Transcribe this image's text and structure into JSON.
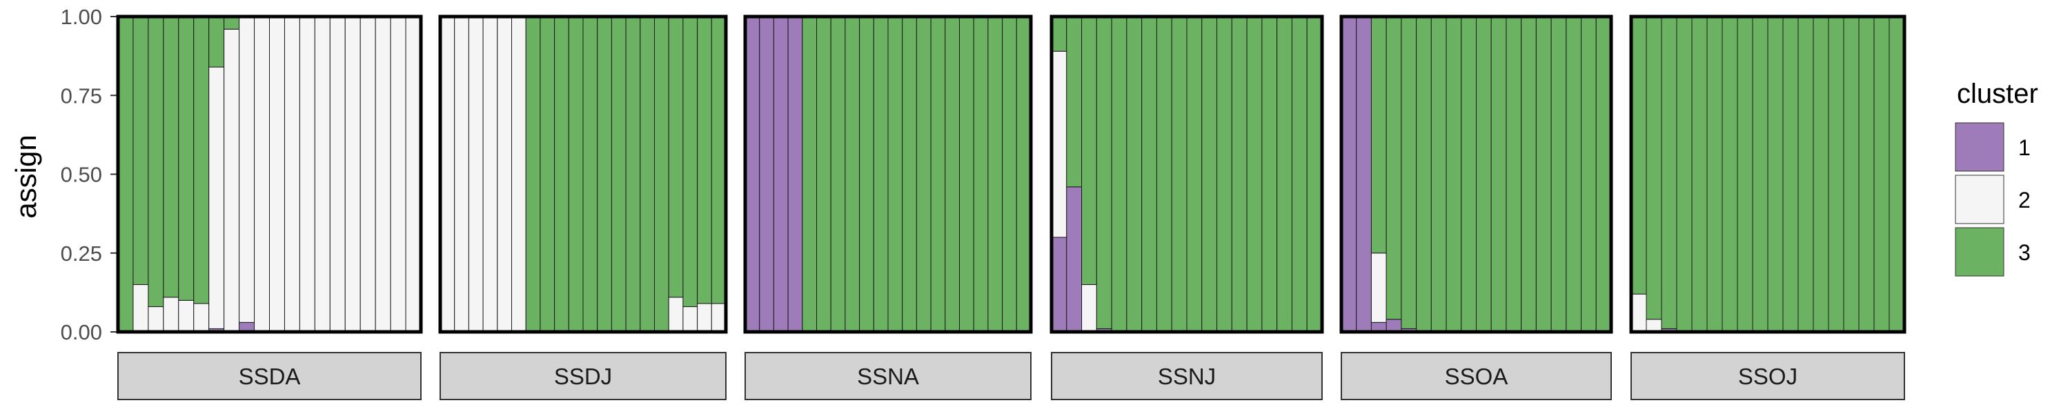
{
  "chart_data": {
    "type": "bar",
    "stacked": true,
    "ylabel": "assign",
    "ylim": [
      0,
      1
    ],
    "yticks": [
      "0.00",
      "0.25",
      "0.50",
      "0.75",
      "1.00"
    ],
    "legend": {
      "title": "cluster",
      "position": "right",
      "entries": [
        {
          "label": "1",
          "color": "#9E7BB9"
        },
        {
          "label": "2",
          "color": "#F5F5F5"
        },
        {
          "label": "3",
          "color": "#6BB263"
        }
      ]
    },
    "panels": [
      {
        "name": "SSDA",
        "individuals": [
          [
            0.0,
            0.0,
            1.0
          ],
          [
            0.0,
            0.15,
            0.85
          ],
          [
            0.0,
            0.08,
            0.92
          ],
          [
            0.0,
            0.11,
            0.89
          ],
          [
            0.0,
            0.1,
            0.9
          ],
          [
            0.0,
            0.09,
            0.91
          ],
          [
            0.01,
            0.83,
            0.16
          ],
          [
            0.0,
            0.96,
            0.04
          ],
          [
            0.03,
            0.97,
            0.0
          ],
          [
            0.0,
            1.0,
            0.0
          ],
          [
            0.0,
            1.0,
            0.0
          ],
          [
            0.0,
            1.0,
            0.0
          ],
          [
            0.0,
            1.0,
            0.0
          ],
          [
            0.0,
            1.0,
            0.0
          ],
          [
            0.0,
            1.0,
            0.0
          ],
          [
            0.0,
            1.0,
            0.0
          ],
          [
            0.0,
            1.0,
            0.0
          ],
          [
            0.0,
            1.0,
            0.0
          ],
          [
            0.0,
            1.0,
            0.0
          ],
          [
            0.0,
            1.0,
            0.0
          ]
        ]
      },
      {
        "name": "SSDJ",
        "individuals": [
          [
            0.0,
            1.0,
            0.0
          ],
          [
            0.0,
            1.0,
            0.0
          ],
          [
            0.0,
            1.0,
            0.0
          ],
          [
            0.0,
            1.0,
            0.0
          ],
          [
            0.0,
            1.0,
            0.0
          ],
          [
            0.0,
            1.0,
            0.0
          ],
          [
            0.0,
            0.0,
            1.0
          ],
          [
            0.0,
            0.0,
            1.0
          ],
          [
            0.0,
            0.0,
            1.0
          ],
          [
            0.0,
            0.0,
            1.0
          ],
          [
            0.0,
            0.0,
            1.0
          ],
          [
            0.0,
            0.0,
            1.0
          ],
          [
            0.0,
            0.0,
            1.0
          ],
          [
            0.0,
            0.0,
            1.0
          ],
          [
            0.0,
            0.0,
            1.0
          ],
          [
            0.0,
            0.0,
            1.0
          ],
          [
            0.0,
            0.11,
            0.89
          ],
          [
            0.0,
            0.08,
            0.92
          ],
          [
            0.0,
            0.09,
            0.91
          ],
          [
            0.0,
            0.09,
            0.91
          ]
        ]
      },
      {
        "name": "SSNA",
        "individuals": [
          [
            1.0,
            0.0,
            0.0
          ],
          [
            1.0,
            0.0,
            0.0
          ],
          [
            1.0,
            0.0,
            0.0
          ],
          [
            1.0,
            0.0,
            0.0
          ],
          [
            0.0,
            0.0,
            1.0
          ],
          [
            0.0,
            0.0,
            1.0
          ],
          [
            0.0,
            0.0,
            1.0
          ],
          [
            0.0,
            0.0,
            1.0
          ],
          [
            0.0,
            0.0,
            1.0
          ],
          [
            0.0,
            0.0,
            1.0
          ],
          [
            0.0,
            0.0,
            1.0
          ],
          [
            0.0,
            0.0,
            1.0
          ],
          [
            0.0,
            0.0,
            1.0
          ],
          [
            0.0,
            0.0,
            1.0
          ],
          [
            0.0,
            0.0,
            1.0
          ],
          [
            0.0,
            0.0,
            1.0
          ],
          [
            0.0,
            0.0,
            1.0
          ],
          [
            0.0,
            0.0,
            1.0
          ],
          [
            0.0,
            0.0,
            1.0
          ],
          [
            0.0,
            0.0,
            1.0
          ]
        ]
      },
      {
        "name": "SSNJ",
        "individuals": [
          [
            0.3,
            0.59,
            0.11
          ],
          [
            0.46,
            0.0,
            0.54
          ],
          [
            0.0,
            0.15,
            0.85
          ],
          [
            0.01,
            0.0,
            0.99
          ],
          [
            0.0,
            0.0,
            1.0
          ],
          [
            0.0,
            0.0,
            1.0
          ],
          [
            0.0,
            0.0,
            1.0
          ],
          [
            0.0,
            0.0,
            1.0
          ],
          [
            0.0,
            0.0,
            1.0
          ],
          [
            0.0,
            0.0,
            1.0
          ],
          [
            0.0,
            0.0,
            1.0
          ],
          [
            0.0,
            0.0,
            1.0
          ],
          [
            0.0,
            0.0,
            1.0
          ],
          [
            0.0,
            0.0,
            1.0
          ],
          [
            0.0,
            0.0,
            1.0
          ],
          [
            0.0,
            0.0,
            1.0
          ],
          [
            0.0,
            0.0,
            1.0
          ],
          [
            0.0,
            0.0,
            1.0
          ]
        ]
      },
      {
        "name": "SSOA",
        "individuals": [
          [
            1.0,
            0.0,
            0.0
          ],
          [
            1.0,
            0.0,
            0.0
          ],
          [
            0.03,
            0.22,
            0.75
          ],
          [
            0.04,
            0.0,
            0.96
          ],
          [
            0.01,
            0.0,
            0.99
          ],
          [
            0.0,
            0.0,
            1.0
          ],
          [
            0.0,
            0.0,
            1.0
          ],
          [
            0.0,
            0.0,
            1.0
          ],
          [
            0.0,
            0.0,
            1.0
          ],
          [
            0.0,
            0.0,
            1.0
          ],
          [
            0.0,
            0.0,
            1.0
          ],
          [
            0.0,
            0.0,
            1.0
          ],
          [
            0.0,
            0.0,
            1.0
          ],
          [
            0.0,
            0.0,
            1.0
          ],
          [
            0.0,
            0.0,
            1.0
          ],
          [
            0.0,
            0.0,
            1.0
          ],
          [
            0.0,
            0.0,
            1.0
          ],
          [
            0.0,
            0.0,
            1.0
          ]
        ]
      },
      {
        "name": "SSOJ",
        "individuals": [
          [
            0.0,
            0.12,
            0.88
          ],
          [
            0.0,
            0.04,
            0.96
          ],
          [
            0.01,
            0.0,
            0.99
          ],
          [
            0.0,
            0.0,
            1.0
          ],
          [
            0.0,
            0.0,
            1.0
          ],
          [
            0.0,
            0.0,
            1.0
          ],
          [
            0.0,
            0.0,
            1.0
          ],
          [
            0.0,
            0.0,
            1.0
          ],
          [
            0.0,
            0.0,
            1.0
          ],
          [
            0.0,
            0.0,
            1.0
          ],
          [
            0.0,
            0.0,
            1.0
          ],
          [
            0.0,
            0.0,
            1.0
          ],
          [
            0.0,
            0.0,
            1.0
          ],
          [
            0.0,
            0.0,
            1.0
          ],
          [
            0.0,
            0.0,
            1.0
          ],
          [
            0.0,
            0.0,
            1.0
          ],
          [
            0.0,
            0.0,
            1.0
          ],
          [
            0.0,
            0.0,
            1.0
          ]
        ]
      }
    ]
  }
}
